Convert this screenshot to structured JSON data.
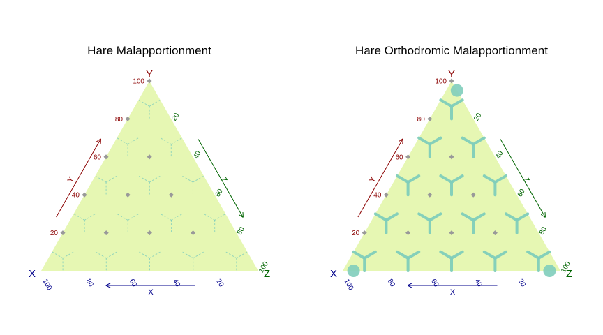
{
  "chart_data": [
    {
      "type": "ternary",
      "title": "Hare Malapportionment",
      "corners": {
        "x": "X",
        "y": "Y",
        "z": "Z"
      },
      "axis_labels": {
        "x": "X",
        "y": "Y",
        "z": "Z"
      },
      "x_ticks": [
        "100",
        "80",
        "60",
        "40",
        "20"
      ],
      "y_ticks": [
        "20",
        "40",
        "60",
        "80",
        "100"
      ],
      "z_ticks": [
        "20",
        "40",
        "60",
        "80",
        "100"
      ],
      "grid_points": [
        [
          80,
          20,
          0
        ],
        [
          60,
          40,
          0
        ],
        [
          40,
          60,
          0
        ],
        [
          20,
          80,
          0
        ],
        [
          0,
          100,
          0
        ],
        [
          60,
          20,
          20
        ],
        [
          40,
          40,
          20
        ],
        [
          20,
          60,
          20
        ],
        [
          40,
          20,
          40
        ],
        [
          20,
          40,
          40
        ],
        [
          20,
          20,
          60
        ]
      ],
      "region_boundaries": "thin",
      "colors": {
        "fill": "#e6f7b3",
        "boundary": "#7fcdbb",
        "point": "#999999"
      }
    },
    {
      "type": "ternary",
      "title": "Hare Orthodromic Malapportionment",
      "corners": {
        "x": "X",
        "y": "Y",
        "z": "Z"
      },
      "axis_labels": {
        "x": "X",
        "y": "Y",
        "z": "Z"
      },
      "x_ticks": [
        "100",
        "80",
        "60",
        "40",
        "20"
      ],
      "y_ticks": [
        "20",
        "40",
        "60",
        "80",
        "100"
      ],
      "z_ticks": [
        "20",
        "40",
        "60",
        "80",
        "100"
      ],
      "grid_points": [
        [
          80,
          20,
          0
        ],
        [
          60,
          40,
          0
        ],
        [
          40,
          60,
          0
        ],
        [
          20,
          80,
          0
        ],
        [
          0,
          100,
          0
        ],
        [
          60,
          20,
          20
        ],
        [
          40,
          40,
          20
        ],
        [
          20,
          60,
          20
        ],
        [
          40,
          20,
          40
        ],
        [
          20,
          40,
          40
        ],
        [
          20,
          20,
          60
        ]
      ],
      "region_boundaries": "thick",
      "colors": {
        "fill": "#e6f7b3",
        "boundary": "#7fcdbb",
        "point": "#999999"
      }
    }
  ],
  "colors": {
    "x_axis": "#00008b",
    "y_axis": "#8b0000",
    "z_axis": "#006400"
  }
}
